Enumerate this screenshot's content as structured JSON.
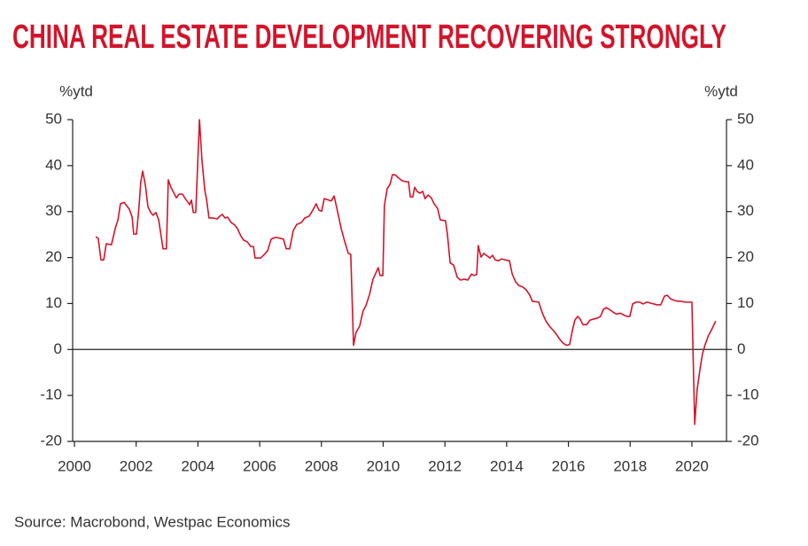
{
  "chart_data": {
    "type": "line",
    "title": "CHINA REAL ESTATE DEVELOPMENT RECOVERING STRONGLY",
    "y_label": "%ytd",
    "y2_label": "%ytd",
    "source": "Source: Macrobond, Westpac Economics",
    "color": "#d2152b",
    "xlim": [
      2000,
      2021.12
    ],
    "xticks": [
      2000,
      2002,
      2004,
      2006,
      2008,
      2010,
      2012,
      2014,
      2016,
      2018,
      2020
    ],
    "ylim": [
      -20,
      50
    ],
    "yticks": [
      -20,
      -10,
      0,
      10,
      20,
      30,
      40,
      50
    ],
    "y2lim": [
      -20,
      50
    ],
    "y2ticks": [
      -20,
      -10,
      0,
      10,
      20,
      30,
      40,
      50
    ],
    "x": [
      2000.69,
      2000.77,
      2000.86,
      2000.95,
      2001.03,
      2001.2,
      2001.32,
      2001.41,
      2001.49,
      2001.61,
      2001.69,
      2001.78,
      2001.87,
      2001.92,
      2002.01,
      2002.09,
      2002.15,
      2002.21,
      2002.3,
      2002.38,
      2002.47,
      2002.55,
      2002.64,
      2002.73,
      2002.87,
      2002.98,
      2003.04,
      2003.13,
      2003.21,
      2003.3,
      2003.39,
      2003.5,
      2003.59,
      2003.67,
      2003.73,
      2003.79,
      2003.85,
      2003.93,
      2004.05,
      2004.13,
      2004.22,
      2004.28,
      2004.36,
      2004.5,
      2004.62,
      2004.71,
      2004.79,
      2004.88,
      2004.96,
      2005.08,
      2005.19,
      2005.28,
      2005.39,
      2005.48,
      2005.6,
      2005.71,
      2005.8,
      2005.85,
      2006.03,
      2006.14,
      2006.26,
      2006.37,
      2006.51,
      2006.66,
      2006.77,
      2006.86,
      2006.97,
      2007.09,
      2007.2,
      2007.35,
      2007.46,
      2007.6,
      2007.72,
      2007.83,
      2007.92,
      2008.01,
      2008.09,
      2008.24,
      2008.32,
      2008.41,
      2008.52,
      2008.64,
      2008.75,
      2008.87,
      2008.95,
      2009.04,
      2009.12,
      2009.24,
      2009.35,
      2009.44,
      2009.56,
      2009.67,
      2009.76,
      2009.84,
      2009.9,
      2009.99,
      2010.04,
      2010.13,
      2010.22,
      2010.3,
      2010.39,
      2010.5,
      2010.62,
      2010.73,
      2010.82,
      2010.88,
      2010.96,
      2011.02,
      2011.1,
      2011.19,
      2011.28,
      2011.36,
      2011.45,
      2011.56,
      2011.65,
      2011.76,
      2011.85,
      2012.02,
      2012.08,
      2012.17,
      2012.28,
      2012.4,
      2012.51,
      2012.63,
      2012.74,
      2012.86,
      2012.94,
      2013.03,
      2013.08,
      2013.17,
      2013.26,
      2013.34,
      2013.46,
      2013.54,
      2013.63,
      2013.74,
      2013.83,
      2013.95,
      2014.09,
      2014.18,
      2014.29,
      2014.4,
      2014.52,
      2014.63,
      2014.75,
      2014.83,
      2015.04,
      2015.15,
      2015.27,
      2015.38,
      2015.49,
      2015.61,
      2015.72,
      2015.84,
      2015.95,
      2016.04,
      2016.13,
      2016.21,
      2016.3,
      2016.38,
      2016.47,
      2016.59,
      2016.7,
      2016.81,
      2016.93,
      2017.04,
      2017.13,
      2017.22,
      2017.33,
      2017.45,
      2017.56,
      2017.68,
      2017.79,
      2017.9,
      2017.99,
      2018.08,
      2018.19,
      2018.31,
      2018.42,
      2018.54,
      2018.65,
      2018.77,
      2018.88,
      2018.99,
      2019.11,
      2019.2,
      2019.31,
      2019.43,
      2019.54,
      2019.66,
      2019.77,
      2019.91,
      2020.0,
      2020.09,
      2020.17,
      2020.26,
      2020.34,
      2020.43,
      2020.54,
      2020.66,
      2020.77
    ],
    "values": [
      24.5,
      24.2,
      19.5,
      19.5,
      23,
      22.8,
      26.3,
      28.2,
      31.7,
      32,
      31.3,
      30.5,
      28.8,
      25.1,
      25.1,
      30.9,
      36.5,
      38.8,
      35.7,
      31.1,
      29.8,
      29.2,
      29.8,
      28.2,
      21.9,
      21.9,
      36.9,
      35.2,
      34.2,
      33,
      33.8,
      33.8,
      32.8,
      32.1,
      31.5,
      32.5,
      29.8,
      29.8,
      50,
      41.3,
      34.8,
      32.6,
      28.6,
      28.6,
      28.4,
      29,
      29.4,
      28.6,
      28.8,
      27.6,
      27.1,
      26.3,
      24.7,
      23.8,
      23.4,
      22.4,
      22.4,
      19.9,
      19.9,
      20.6,
      21.5,
      24,
      24.4,
      24.2,
      24,
      21.9,
      21.9,
      25.9,
      27.2,
      27.6,
      28.6,
      29,
      30.3,
      31.7,
      30.3,
      30.1,
      32.8,
      32.5,
      32.3,
      33.4,
      30.1,
      26.3,
      23.6,
      20.9,
      20.7,
      0.9,
      3.7,
      5.1,
      8.4,
      9.5,
      12,
      15.3,
      16.6,
      17.8,
      16.1,
      16.1,
      31.3,
      35,
      35.9,
      38,
      38,
      37.3,
      36.7,
      36.5,
      36.5,
      33.2,
      33.2,
      35.3,
      34.4,
      34,
      34.4,
      32.8,
      33.6,
      33,
      31.7,
      30.7,
      28.2,
      28,
      25.1,
      18.8,
      18.4,
      15.7,
      15.1,
      15.3,
      15.1,
      16.4,
      16.1,
      16.3,
      22.6,
      20.1,
      20.9,
      20.5,
      19.9,
      20.5,
      19.5,
      19.3,
      19.7,
      19.5,
      19.3,
      16.4,
      14.7,
      13.9,
      13.6,
      13,
      11.8,
      10.5,
      10.3,
      8,
      6.2,
      5.1,
      4.3,
      3.3,
      2.2,
      1.3,
      0.9,
      1.1,
      4.2,
      6.4,
      7.2,
      6.6,
      5.4,
      5.4,
      6.4,
      6.6,
      6.8,
      7.2,
      8.7,
      9.1,
      8.7,
      8.1,
      7.7,
      7.9,
      7.5,
      7.2,
      7.2,
      9.9,
      10.3,
      10.3,
      9.9,
      10.3,
      10.1,
      9.9,
      9.7,
      9.7,
      11.6,
      11.8,
      11,
      10.7,
      10.5,
      10.5,
      10.3,
      10.3,
      10.3,
      -16.3,
      -8.7,
      -4.4,
      -1,
      1.1,
      3.1,
      4.6,
      6.2
    ]
  }
}
